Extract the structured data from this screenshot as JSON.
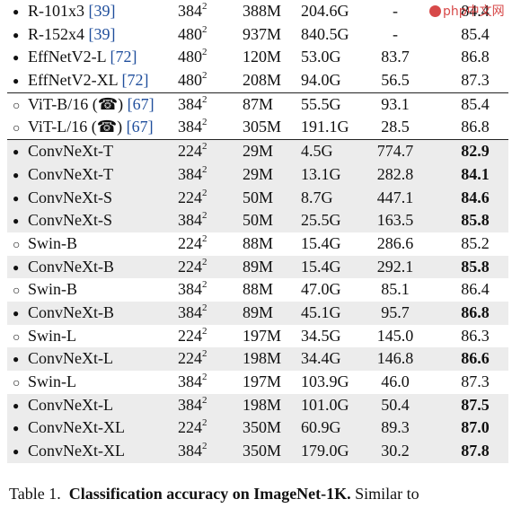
{
  "watermark": "php中文网",
  "rows": [
    {
      "marker": "●",
      "model": "R-101x3 ",
      "ref": "[39]",
      "res": "384",
      "exp": "2",
      "params": "388M",
      "flops": "204.6G",
      "thr": "-",
      "acc": "84.4",
      "bold": false,
      "shade": false
    },
    {
      "marker": "●",
      "model": "R-152x4 ",
      "ref": "[39]",
      "res": "480",
      "exp": "2",
      "params": "937M",
      "flops": "840.5G",
      "thr": "-",
      "acc": "85.4",
      "bold": false,
      "shade": false
    },
    {
      "marker": "●",
      "model": "EffNetV2-L ",
      "ref": "[72]",
      "res": "480",
      "exp": "2",
      "params": "120M",
      "flops": "53.0G",
      "thr": "83.7",
      "acc": "86.8",
      "bold": false,
      "shade": false
    },
    {
      "marker": "●",
      "model": "EffNetV2-XL ",
      "ref": "[72]",
      "res": "480",
      "exp": "2",
      "params": "208M",
      "flops": "94.0G",
      "thr": "56.5",
      "acc": "87.3",
      "bold": false,
      "shade": false,
      "rule_after": true
    },
    {
      "marker": "○",
      "model": "ViT-B/16 (☎) ",
      "ref": "[67]",
      "res": "384",
      "exp": "2",
      "params": "87M",
      "flops": "55.5G",
      "thr": "93.1",
      "acc": "85.4",
      "bold": false,
      "shade": false
    },
    {
      "marker": "○",
      "model": "ViT-L/16 (☎) ",
      "ref": "[67]",
      "res": "384",
      "exp": "2",
      "params": "305M",
      "flops": "191.1G",
      "thr": "28.5",
      "acc": "86.8",
      "bold": false,
      "shade": false,
      "rule_after": true
    },
    {
      "marker": "●",
      "model": "ConvNeXt-T",
      "ref": "",
      "res": "224",
      "exp": "2",
      "params": "29M",
      "flops": "4.5G",
      "thr": "774.7",
      "acc": "82.9",
      "bold": true,
      "shade": true
    },
    {
      "marker": "●",
      "model": "ConvNeXt-T",
      "ref": "",
      "res": "384",
      "exp": "2",
      "params": "29M",
      "flops": "13.1G",
      "thr": "282.8",
      "acc": "84.1",
      "bold": true,
      "shade": true
    },
    {
      "marker": "●",
      "model": "ConvNeXt-S",
      "ref": "",
      "res": "224",
      "exp": "2",
      "params": "50M",
      "flops": "8.7G",
      "thr": "447.1",
      "acc": "84.6",
      "bold": true,
      "shade": true
    },
    {
      "marker": "●",
      "model": "ConvNeXt-S",
      "ref": "",
      "res": "384",
      "exp": "2",
      "params": "50M",
      "flops": "25.5G",
      "thr": "163.5",
      "acc": "85.8",
      "bold": true,
      "shade": true
    },
    {
      "marker": "○",
      "model": "Swin-B",
      "ref": "",
      "res": "224",
      "exp": "2",
      "params": "88M",
      "flops": "15.4G",
      "thr": "286.6",
      "acc": "85.2",
      "bold": false,
      "shade": false
    },
    {
      "marker": "●",
      "model": "ConvNeXt-B",
      "ref": "",
      "res": "224",
      "exp": "2",
      "params": "89M",
      "flops": "15.4G",
      "thr": "292.1",
      "acc": "85.8",
      "bold": true,
      "shade": true
    },
    {
      "marker": "○",
      "model": "Swin-B",
      "ref": "",
      "res": "384",
      "exp": "2",
      "params": "88M",
      "flops": "47.0G",
      "thr": "85.1",
      "acc": "86.4",
      "bold": false,
      "shade": false
    },
    {
      "marker": "●",
      "model": "ConvNeXt-B",
      "ref": "",
      "res": "384",
      "exp": "2",
      "params": "89M",
      "flops": "45.1G",
      "thr": "95.7",
      "acc": "86.8",
      "bold": true,
      "shade": true
    },
    {
      "marker": "○",
      "model": "Swin-L",
      "ref": "",
      "res": "224",
      "exp": "2",
      "params": "197M",
      "flops": "34.5G",
      "thr": "145.0",
      "acc": "86.3",
      "bold": false,
      "shade": false
    },
    {
      "marker": "●",
      "model": "ConvNeXt-L",
      "ref": "",
      "res": "224",
      "exp": "2",
      "params": "198M",
      "flops": "34.4G",
      "thr": "146.8",
      "acc": "86.6",
      "bold": true,
      "shade": true
    },
    {
      "marker": "○",
      "model": "Swin-L",
      "ref": "",
      "res": "384",
      "exp": "2",
      "params": "197M",
      "flops": "103.9G",
      "thr": "46.0",
      "acc": "87.3",
      "bold": false,
      "shade": false
    },
    {
      "marker": "●",
      "model": "ConvNeXt-L",
      "ref": "",
      "res": "384",
      "exp": "2",
      "params": "198M",
      "flops": "101.0G",
      "thr": "50.4",
      "acc": "87.5",
      "bold": true,
      "shade": true
    },
    {
      "marker": "●",
      "model": "ConvNeXt-XL",
      "ref": "",
      "res": "224",
      "exp": "2",
      "params": "350M",
      "flops": "60.9G",
      "thr": "89.3",
      "acc": "87.0",
      "bold": true,
      "shade": true
    },
    {
      "marker": "●",
      "model": "ConvNeXt-XL",
      "ref": "",
      "res": "384",
      "exp": "2",
      "params": "350M",
      "flops": "179.0G",
      "thr": "30.2",
      "acc": "87.8",
      "bold": true,
      "shade": true
    }
  ],
  "caption": {
    "label": "Table 1.",
    "bold": "Classification accuracy on ImageNet-1K.",
    "rest": "Similar to"
  }
}
